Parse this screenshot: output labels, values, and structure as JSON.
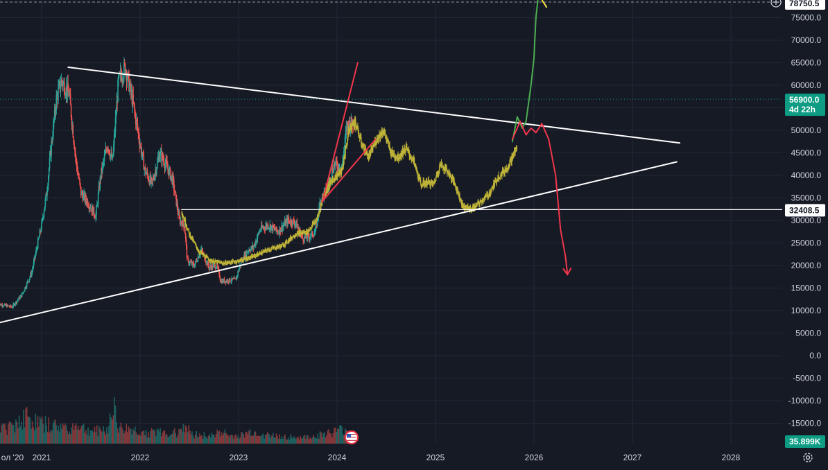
{
  "colors": {
    "background": "#161a25",
    "grid": "#242835",
    "up": "#26a69a",
    "down": "#ef5350",
    "projection": "#bfb338",
    "trendline": "#ffffff",
    "arrow_red": "#f2364b",
    "arrow_green": "#4caf50",
    "price_badge": "#0e9d84",
    "volume_badge": "#0e9d84"
  },
  "icons": {
    "top_add": "plus-circle-icon",
    "event_flag": "us-flag-icon",
    "settings": "gear-icon"
  },
  "price_scale": {
    "top_label": "78750.5",
    "current_price": "56900.0",
    "countdown": "4d 22h",
    "level_label": "32408.5",
    "volume_label": "35.899K"
  },
  "chart_data": {
    "type": "candlestick",
    "x_labels": [
      "ол '20",
      "2021",
      "2022",
      "2023",
      "2024",
      "2025",
      "2026",
      "2027",
      "2028"
    ],
    "y_ticks": [
      "75000.0",
      "70000.0",
      "65000.0",
      "60000.0",
      "55000.0",
      "50000.0",
      "45000.0",
      "40000.0",
      "35000.0",
      "30000.0",
      "25000.0",
      "20000.0",
      "15000.0",
      "10000.0",
      "5000.0",
      "0.0",
      "-5000.0",
      "-10000.0",
      "-15000.0"
    ],
    "ylim": [
      -19000,
      79000
    ],
    "xlim": [
      2020.55,
      2028.95
    ],
    "grid": true,
    "price_path": [
      [
        2020.55,
        11500
      ],
      [
        2020.7,
        10800
      ],
      [
        2020.8,
        13500
      ],
      [
        2020.9,
        18500
      ],
      [
        2021.0,
        29000
      ],
      [
        2021.05,
        36000
      ],
      [
        2021.1,
        47000
      ],
      [
        2021.15,
        57000
      ],
      [
        2021.2,
        61000
      ],
      [
        2021.28,
        58000
      ],
      [
        2021.35,
        43000
      ],
      [
        2021.4,
        36000
      ],
      [
        2021.47,
        34000
      ],
      [
        2021.55,
        31000
      ],
      [
        2021.6,
        40000
      ],
      [
        2021.67,
        47000
      ],
      [
        2021.72,
        43000
      ],
      [
        2021.78,
        61000
      ],
      [
        2021.85,
        64000
      ],
      [
        2021.92,
        57000
      ],
      [
        2022.0,
        47000
      ],
      [
        2022.05,
        41000
      ],
      [
        2022.12,
        38000
      ],
      [
        2022.2,
        45000
      ],
      [
        2022.27,
        42000
      ],
      [
        2022.33,
        39000
      ],
      [
        2022.4,
        30000
      ],
      [
        2022.45,
        29000
      ],
      [
        2022.48,
        21000
      ],
      [
        2022.55,
        20000
      ],
      [
        2022.62,
        23500
      ],
      [
        2022.7,
        19500
      ],
      [
        2022.78,
        20000
      ],
      [
        2022.82,
        16500
      ],
      [
        2022.9,
        16700
      ],
      [
        2022.97,
        16800
      ],
      [
        2023.03,
        21000
      ],
      [
        2023.1,
        23500
      ],
      [
        2023.15,
        24000
      ],
      [
        2023.22,
        28000
      ],
      [
        2023.3,
        29000
      ],
      [
        2023.4,
        27500
      ],
      [
        2023.5,
        30000
      ],
      [
        2023.58,
        29500
      ],
      [
        2023.65,
        26000
      ],
      [
        2023.72,
        26500
      ],
      [
        2023.78,
        27500
      ],
      [
        2023.83,
        34500
      ],
      [
        2023.9,
        37000
      ],
      [
        2023.97,
        42500
      ],
      [
        2024.05,
        42000
      ],
      [
        2024.1,
        51000
      ],
      [
        2024.17,
        52000
      ]
    ],
    "projection_path": [
      [
        2022.42,
        32000
      ],
      [
        2022.5,
        27000
      ],
      [
        2022.6,
        23000
      ],
      [
        2022.72,
        21000
      ],
      [
        2022.85,
        20500
      ],
      [
        2023.0,
        21000
      ],
      [
        2023.15,
        22000
      ],
      [
        2023.3,
        23500
      ],
      [
        2023.45,
        24500
      ],
      [
        2023.58,
        27000
      ],
      [
        2023.7,
        27500
      ],
      [
        2023.8,
        30500
      ],
      [
        2023.87,
        36000
      ],
      [
        2023.95,
        39000
      ],
      [
        2024.05,
        41000
      ],
      [
        2024.12,
        50000
      ],
      [
        2024.18,
        52000
      ],
      [
        2024.25,
        47000
      ],
      [
        2024.32,
        44000
      ],
      [
        2024.4,
        48000
      ],
      [
        2024.47,
        50000
      ],
      [
        2024.55,
        45000
      ],
      [
        2024.62,
        44000
      ],
      [
        2024.7,
        46000
      ],
      [
        2024.78,
        43000
      ],
      [
        2024.85,
        38000
      ],
      [
        2024.92,
        38500
      ],
      [
        2024.98,
        38000
      ],
      [
        2025.05,
        42500
      ],
      [
        2025.12,
        41000
      ],
      [
        2025.2,
        38000
      ],
      [
        2025.28,
        33000
      ],
      [
        2025.37,
        32500
      ],
      [
        2025.45,
        34000
      ],
      [
        2025.55,
        36000
      ],
      [
        2025.63,
        39500
      ],
      [
        2025.72,
        41500
      ],
      [
        2025.78,
        44000
      ],
      [
        2025.83,
        46500
      ]
    ],
    "volume_bars": [
      [
        2020.55,
        3200
      ],
      [
        2020.62,
        2800
      ],
      [
        2020.7,
        3600
      ],
      [
        2020.78,
        4500
      ],
      [
        2020.85,
        5200
      ],
      [
        2020.92,
        4100
      ],
      [
        2021.0,
        3900
      ],
      [
        2021.08,
        3500
      ],
      [
        2021.15,
        3300
      ],
      [
        2021.22,
        3100
      ],
      [
        2021.3,
        3000
      ],
      [
        2021.38,
        3600
      ],
      [
        2021.45,
        2500
      ],
      [
        2021.52,
        2400
      ],
      [
        2021.6,
        2600
      ],
      [
        2021.68,
        2700
      ],
      [
        2021.72,
        8800
      ],
      [
        2021.78,
        2900
      ],
      [
        2021.85,
        2800
      ],
      [
        2021.92,
        2700
      ],
      [
        2022.0,
        2200
      ],
      [
        2022.08,
        2100
      ],
      [
        2022.15,
        2300
      ],
      [
        2022.22,
        2000
      ],
      [
        2022.3,
        2000
      ],
      [
        2022.38,
        2200
      ],
      [
        2022.45,
        3800
      ],
      [
        2022.52,
        1800
      ],
      [
        2022.6,
        1700
      ],
      [
        2022.68,
        1600
      ],
      [
        2022.75,
        1500
      ],
      [
        2022.82,
        2600
      ],
      [
        2022.9,
        1400
      ],
      [
        2022.97,
        1500
      ],
      [
        2023.05,
        1600
      ],
      [
        2023.12,
        2200
      ],
      [
        2023.2,
        2000
      ],
      [
        2023.28,
        1700
      ],
      [
        2023.35,
        1500
      ],
      [
        2023.42,
        1400
      ],
      [
        2023.5,
        1300
      ],
      [
        2023.58,
        1200
      ],
      [
        2023.65,
        1200
      ],
      [
        2023.72,
        1300
      ],
      [
        2023.8,
        1500
      ],
      [
        2023.88,
        1900
      ],
      [
        2023.95,
        2100
      ],
      [
        2024.02,
        2500
      ],
      [
        2024.08,
        2700
      ],
      [
        2024.14,
        2300
      ]
    ],
    "upper_trendline": [
      [
        2021.27,
        64000
      ],
      [
        2027.48,
        47200
      ]
    ],
    "lower_trendline": [
      [
        2020.55,
        7200
      ],
      [
        2027.45,
        43000
      ]
    ],
    "horizontal_level": [
      [
        2022.42,
        32408.5
      ],
      [
        2028.95,
        32408.5
      ]
    ],
    "steep_trendline": [
      [
        2023.85,
        34000
      ],
      [
        2024.21,
        65000
      ]
    ],
    "shallow_trendline": [
      [
        2023.85,
        34200
      ],
      [
        2024.39,
        48000
      ]
    ],
    "green_path": [
      [
        2025.78,
        47500
      ],
      [
        2025.83,
        53000
      ],
      [
        2025.88,
        50500
      ],
      [
        2025.92,
        52000
      ],
      [
        2025.97,
        60000
      ],
      [
        2026.0,
        66000
      ],
      [
        2026.02,
        75000
      ],
      [
        2026.04,
        79000
      ]
    ],
    "red_path": [
      [
        2025.78,
        48000
      ],
      [
        2025.86,
        52000
      ],
      [
        2025.92,
        49000
      ],
      [
        2025.97,
        50500
      ],
      [
        2026.02,
        49500
      ],
      [
        2026.08,
        51500
      ],
      [
        2026.15,
        48000
      ],
      [
        2026.22,
        40000
      ],
      [
        2026.27,
        28000
      ],
      [
        2026.32,
        22000
      ],
      [
        2026.34,
        18000
      ]
    ],
    "current_price": 56900.0,
    "current_price_line": true,
    "top_dashed_line": 78750.5,
    "volume_current": "35.899K"
  }
}
